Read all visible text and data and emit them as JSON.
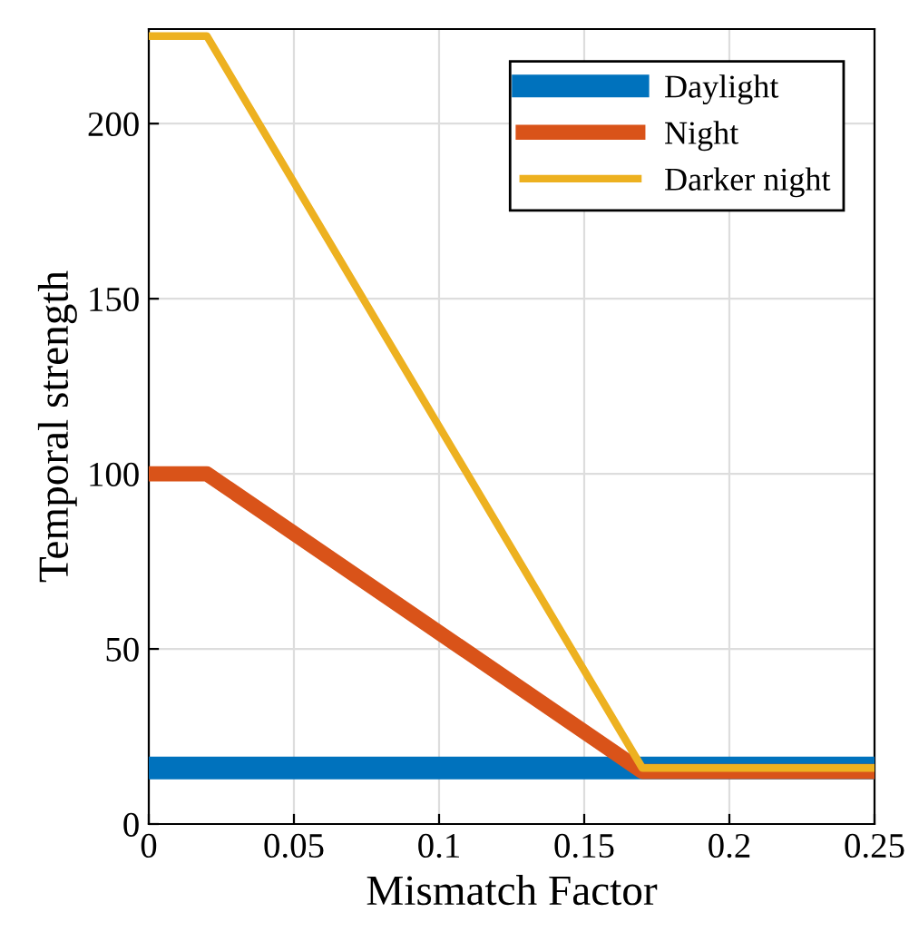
{
  "chart_data": {
    "type": "line",
    "xlabel": "Mismatch Factor",
    "ylabel": "Temporal strength",
    "xlim": [
      0,
      0.25
    ],
    "xticks": [
      0,
      0.05,
      0.1,
      0.15,
      0.2,
      0.25
    ],
    "ylim": [
      0,
      227
    ],
    "yticks": [
      0,
      50,
      100,
      150,
      200
    ],
    "grid": true,
    "legend": "top right",
    "series": [
      {
        "name": "Daylight",
        "color": "#0072bd",
        "x": [
          0,
          0.25
        ],
        "values": [
          16,
          16
        ]
      },
      {
        "name": "Night",
        "color": "#d95319",
        "x": [
          0,
          0.02,
          0.17,
          0.25
        ],
        "values": [
          100,
          100,
          15,
          15
        ]
      },
      {
        "name": "Darker night",
        "color": "#edb120",
        "x": [
          0,
          0.02,
          0.17,
          0.25
        ],
        "values": [
          225,
          225,
          16,
          16
        ]
      }
    ]
  }
}
